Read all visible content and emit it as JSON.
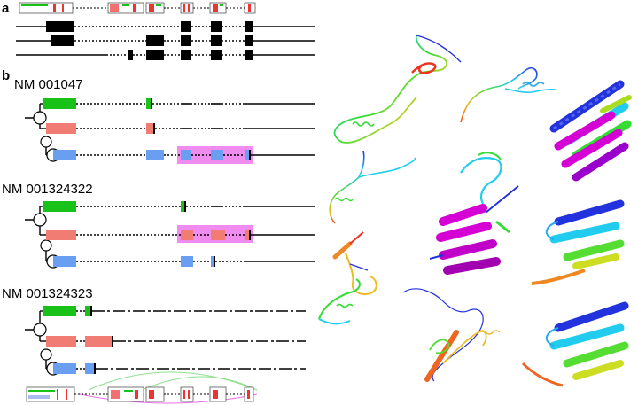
{
  "panels": {
    "a": {
      "label": "a"
    },
    "b": {
      "label": "b",
      "transcripts": [
        {
          "id": "NM 001047"
        },
        {
          "id": "NM 001324322"
        },
        {
          "id": "NM 001324323"
        }
      ]
    }
  },
  "colors": {
    "isoform_green": "#19c219",
    "isoform_salmon": "#f07c74",
    "isoform_blue": "#6a9ef0",
    "highlight_magenta": "#f08cf0",
    "helix_magenta": "#d400d4"
  },
  "protein_structures": {
    "count": 9,
    "coloring": "rainbow",
    "magenta_helices": 2
  }
}
